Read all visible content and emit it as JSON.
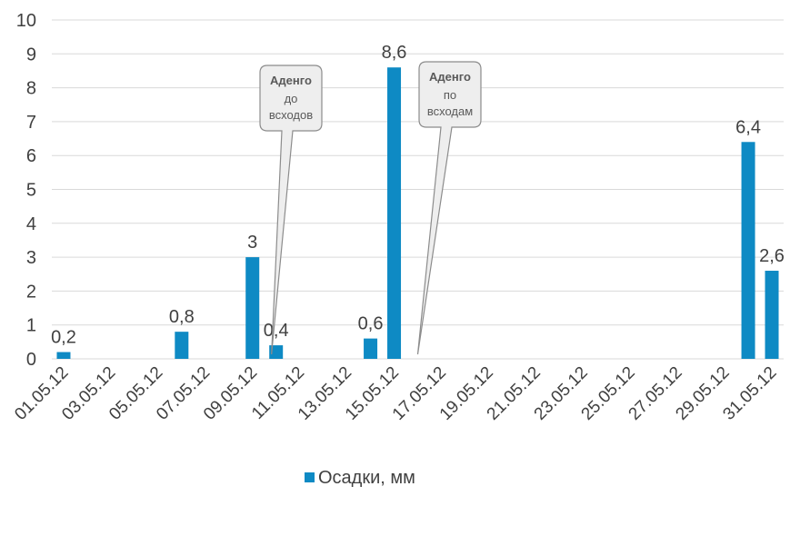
{
  "chart_data": {
    "type": "bar",
    "title": "",
    "xlabel": "",
    "ylabel": "",
    "ylim": [
      0,
      10
    ],
    "yticks": [
      0,
      1,
      2,
      3,
      4,
      5,
      6,
      7,
      8,
      9,
      10
    ],
    "grid": true,
    "legend_position": "bottom",
    "bar_color": "#0e8ac4",
    "categories": [
      "01.05.12",
      "02.05.12",
      "03.05.12",
      "04.05.12",
      "05.05.12",
      "06.05.12",
      "07.05.12",
      "08.05.12",
      "09.05.12",
      "10.05.12",
      "11.05.12",
      "12.05.12",
      "13.05.12",
      "14.05.12",
      "15.05.12",
      "16.05.12",
      "17.05.12",
      "18.05.12",
      "19.05.12",
      "20.05.12",
      "21.05.12",
      "22.05.12",
      "23.05.12",
      "24.05.12",
      "25.05.12",
      "26.05.12",
      "27.05.12",
      "28.05.12",
      "29.05.12",
      "30.05.12",
      "31.05.12"
    ],
    "tick_labels_shown": [
      "01.05.12",
      "03.05.12",
      "05.05.12",
      "07.05.12",
      "09.05.12",
      "11.05.12",
      "13.05.12",
      "15.05.12",
      "17.05.12",
      "19.05.12",
      "21.05.12",
      "23.05.12",
      "25.05.12",
      "27.05.12",
      "29.05.12",
      "31.05.12"
    ],
    "series": [
      {
        "name": "Осадки, мм",
        "values": [
          0.2,
          0,
          0,
          0,
          0,
          0.8,
          0,
          0,
          3,
          0.4,
          0,
          0,
          0,
          0.6,
          8.6,
          0,
          0,
          0,
          0,
          0,
          0,
          0,
          0,
          0,
          0,
          0,
          0,
          0,
          0,
          6.4,
          2.6
        ]
      }
    ],
    "data_labels": [
      {
        "category": "01.05.12",
        "text": "0,2"
      },
      {
        "category": "06.05.12",
        "text": "0,8"
      },
      {
        "category": "09.05.12",
        "text": "3"
      },
      {
        "category": "10.05.12",
        "text": "0,4"
      },
      {
        "category": "14.05.12",
        "text": "0,6"
      },
      {
        "category": "15.05.12",
        "text": "8,6"
      },
      {
        "category": "30.05.12",
        "text": "6,4"
      },
      {
        "category": "31.05.12",
        "text": "2,6"
      }
    ],
    "annotations": [
      {
        "title": "Аденго",
        "lines": [
          "до",
          "всходов"
        ],
        "points_to": "10.05.12"
      },
      {
        "title": "Аденго",
        "lines": [
          "по",
          "всходам"
        ],
        "points_to": "16.05.12"
      }
    ]
  }
}
